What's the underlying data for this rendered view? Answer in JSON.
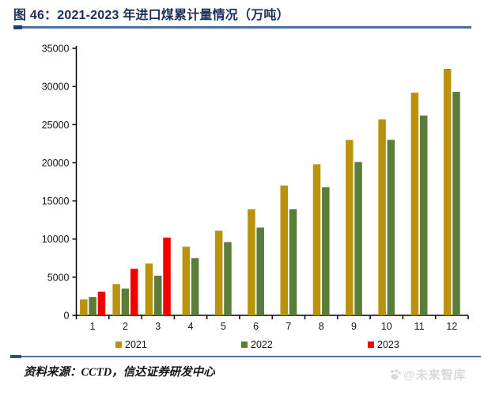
{
  "figure": {
    "title": "图 46：2021-2023 年进口煤累计量情况（万吨）",
    "title_color": "#1b2f5b",
    "rule_color": "#4e6f9d"
  },
  "chart_data": {
    "type": "bar",
    "title": "2021-2023 年进口煤累计量情况（万吨）",
    "xlabel": "",
    "ylabel": "",
    "categories": [
      "1",
      "2",
      "3",
      "4",
      "5",
      "6",
      "7",
      "8",
      "9",
      "10",
      "11",
      "12"
    ],
    "series": [
      {
        "name": "2021",
        "color": "#b8930b",
        "values": [
          2100,
          4100,
          6800,
          9000,
          11100,
          13900,
          17000,
          19800,
          23000,
          25700,
          29200,
          32300
        ]
      },
      {
        "name": "2022",
        "color": "#5a7d3a",
        "values": [
          2400,
          3500,
          5200,
          7500,
          9600,
          11500,
          13900,
          16800,
          20100,
          23000,
          26200,
          29300
        ]
      },
      {
        "name": "2023",
        "color": "#f40000",
        "values": [
          3100,
          6100,
          10200,
          null,
          null,
          null,
          null,
          null,
          null,
          null,
          null,
          null
        ]
      }
    ],
    "ylim": [
      0,
      35000
    ],
    "ytick_step": 5000,
    "grid": false,
    "legend_position": "bottom",
    "axis_color": "#000000",
    "tick_label_color": "#111111"
  },
  "footer": {
    "source": "资料来源：CCTD，信达证券研发中心"
  },
  "watermark": {
    "text": "@未来智库"
  }
}
